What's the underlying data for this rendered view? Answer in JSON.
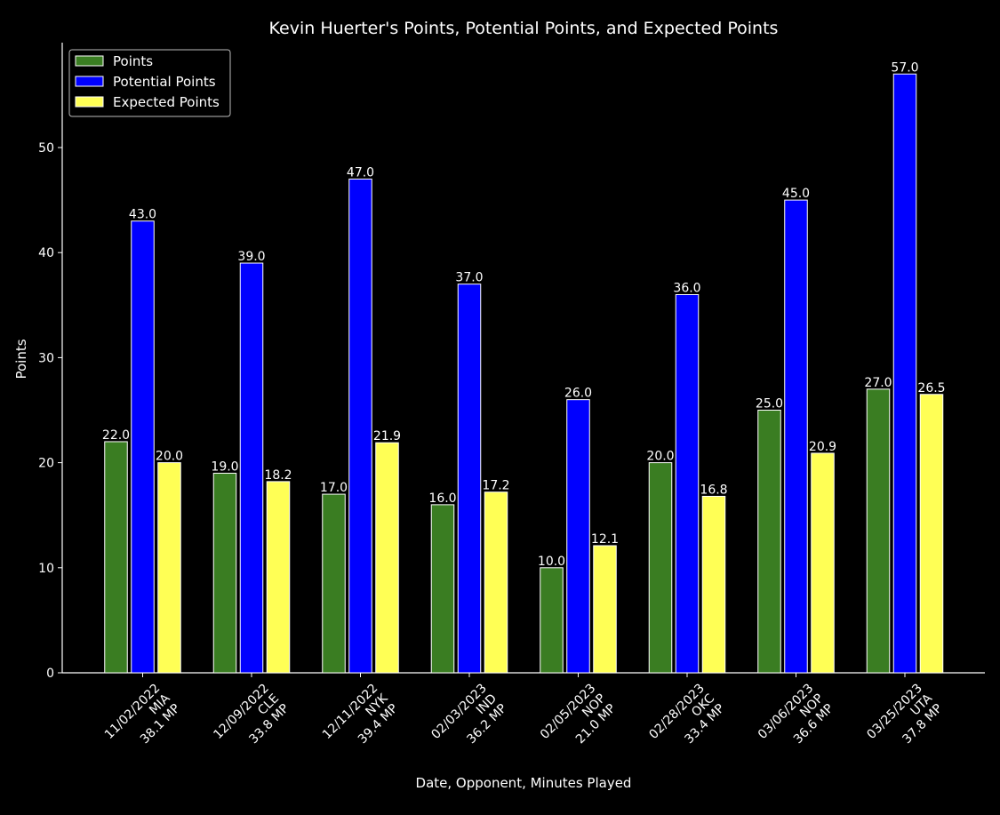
{
  "chart_data": {
    "type": "bar",
    "title": "Kevin Huerter's Points, Potential Points, and Expected Points",
    "xlabel": "Date, Opponent, Minutes Played",
    "ylabel": "Points",
    "ylim": [
      0,
      60
    ],
    "yticks": [
      0,
      10,
      20,
      30,
      40,
      50
    ],
    "grid": false,
    "legend_position": "top-left",
    "categories": [
      [
        "11/02/2022",
        "MIA",
        "38.1 MP"
      ],
      [
        "12/09/2022",
        "CLE",
        "33.8 MP"
      ],
      [
        "12/11/2022",
        "NYK",
        "39.4 MP"
      ],
      [
        "02/03/2023",
        "IND",
        "36.2 MP"
      ],
      [
        "02/05/2023",
        "NOP",
        "21.0 MP"
      ],
      [
        "02/28/2023",
        "OKC",
        "33.4 MP"
      ],
      [
        "03/06/2023",
        "NOP",
        "36.6 MP"
      ],
      [
        "03/25/2023",
        "UTA",
        "37.8 MP"
      ]
    ],
    "series": [
      {
        "name": "Points",
        "color": "#3a7d22",
        "values": [
          22.0,
          19.0,
          17.0,
          16.0,
          10.0,
          20.0,
          25.0,
          27.0
        ],
        "labels": [
          "22.0",
          "19.0",
          "17.0",
          "16.0",
          "10.0",
          "20.0",
          "25.0",
          "27.0"
        ]
      },
      {
        "name": "Potential Points",
        "color": "#0000ff",
        "values": [
          43.0,
          39.0,
          47.0,
          37.0,
          26.0,
          36.0,
          45.0,
          57.0
        ],
        "labels": [
          "43.0",
          "39.0",
          "47.0",
          "37.0",
          "26.0",
          "36.0",
          "45.0",
          "57.0"
        ]
      },
      {
        "name": "Expected Points",
        "color": "#ffff55",
        "values": [
          20.0,
          18.2,
          21.9,
          17.2,
          12.1,
          16.8,
          20.9,
          26.5
        ],
        "labels": [
          "20.0",
          "18.2",
          "21.9",
          "17.2",
          "12.1",
          "16.8",
          "20.9",
          "26.5"
        ]
      }
    ]
  }
}
